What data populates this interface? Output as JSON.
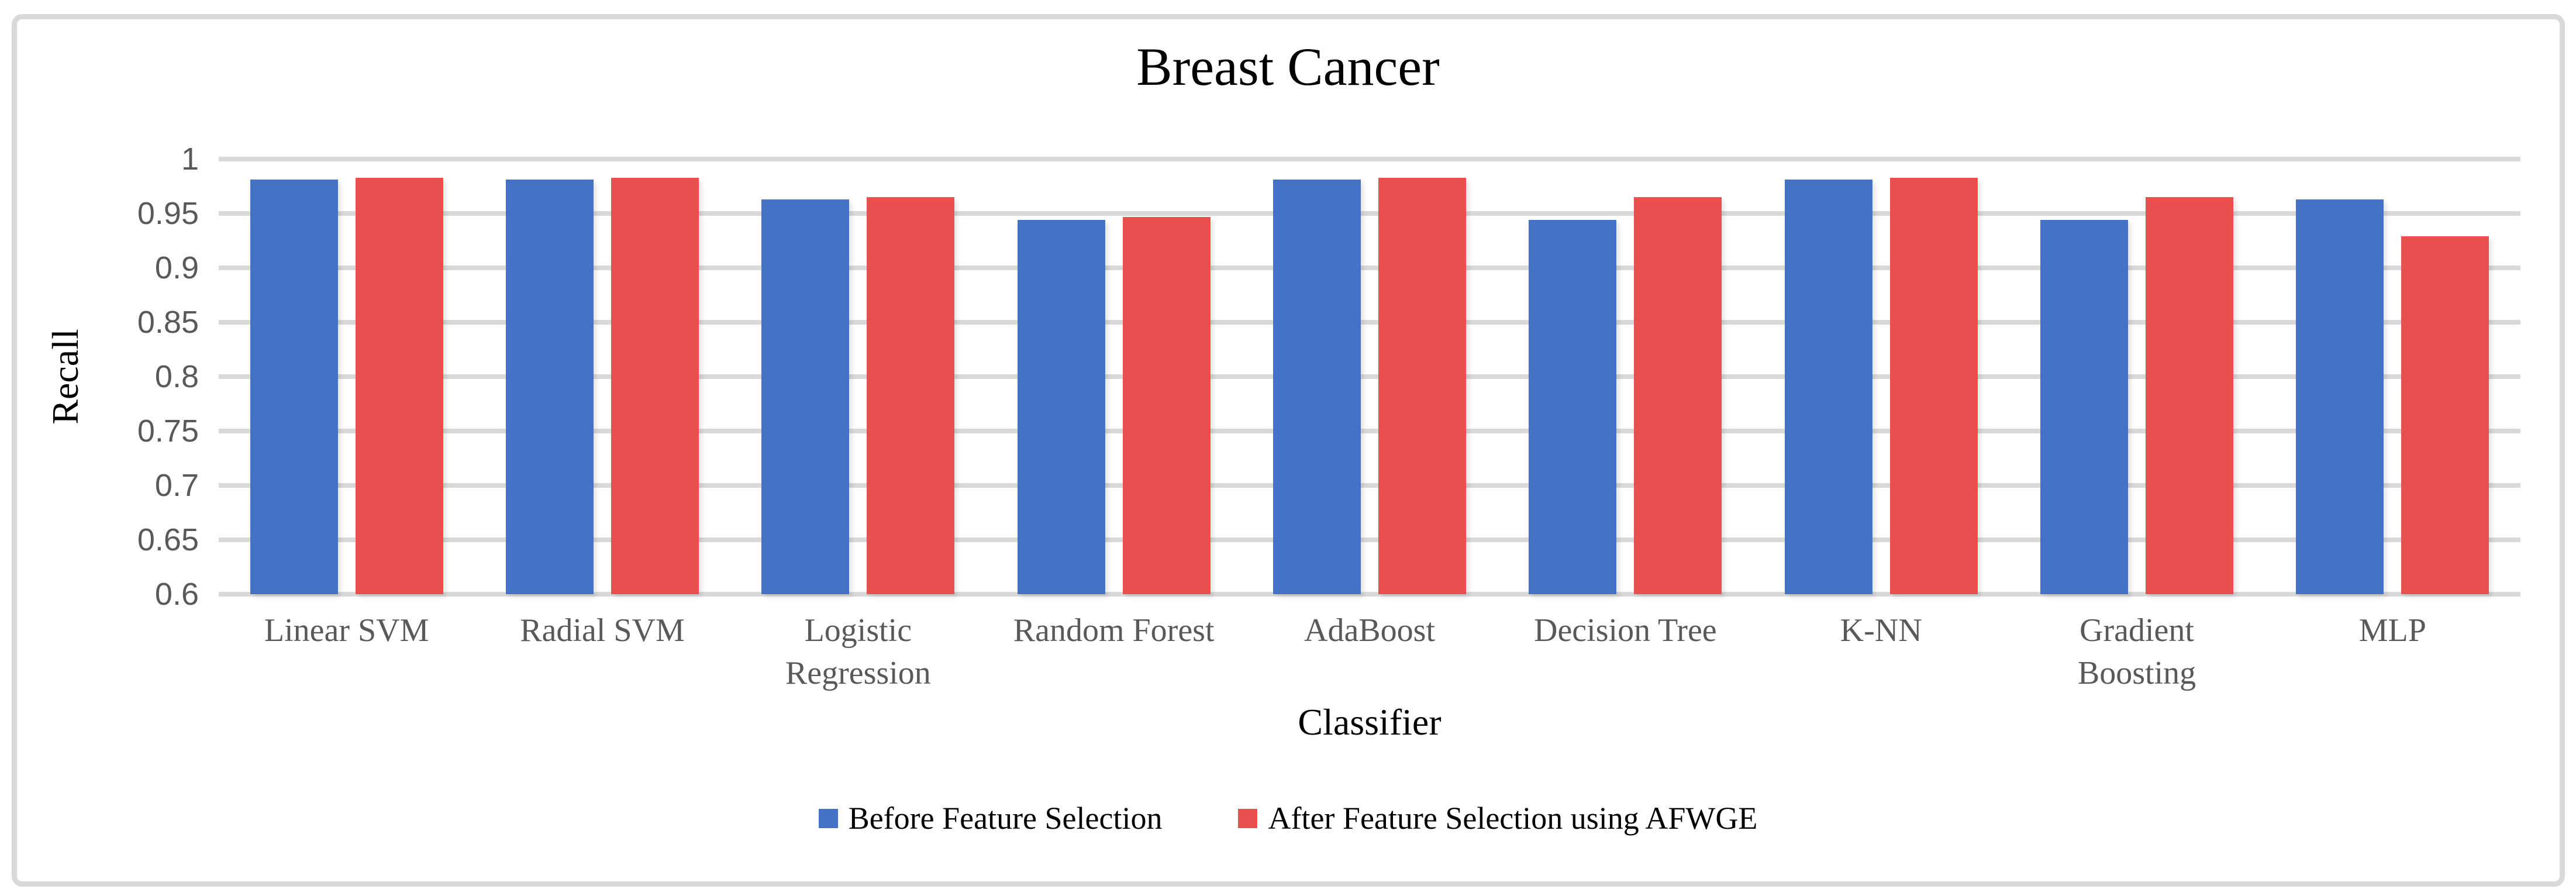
{
  "figure": {
    "title": "Breast Cancer",
    "x_axis_title": "Classifier",
    "y_axis_title": "Recall"
  },
  "legend": [
    {
      "label": "Before Feature Selection",
      "color": "#4472C4"
    },
    {
      "label": "After Feature Selection using AFWGE",
      "color": "#E9504D"
    }
  ],
  "colors": {
    "series_before": "#4472C4",
    "series_after": "#E9504D",
    "gridline": "#D9D9D9",
    "figure_border": "#D9D9D9",
    "tick_label": "#595959",
    "category_label": "#595959",
    "title_text": "#000000"
  },
  "chart_data": {
    "type": "bar",
    "title": "Breast Cancer",
    "xlabel": "Classifier",
    "ylabel": "Recall",
    "categories": [
      "Linear SVM",
      "Radial SVM",
      "Logistic Regression",
      "Random Forest",
      "AdaBoost",
      "Decision Tree",
      "K-NN",
      "Gradient Boosting",
      "MLP"
    ],
    "series": [
      {
        "name": "Before Feature Selection",
        "color": "#4472C4",
        "values": [
          0.981,
          0.981,
          0.963,
          0.944,
          0.981,
          0.944,
          0.981,
          0.944,
          0.963
        ]
      },
      {
        "name": "After Feature Selection using AFWGE",
        "color": "#E9504D",
        "values": [
          0.983,
          0.983,
          0.965,
          0.947,
          0.983,
          0.965,
          0.983,
          0.965,
          0.929
        ]
      }
    ],
    "ylim": [
      0.6,
      1.0
    ],
    "ytick_step": 0.05,
    "ytick_labels": [
      "1",
      "0.95",
      "0.9",
      "0.85",
      "0.8",
      "0.75",
      "0.7",
      "0.65",
      "0.6"
    ],
    "grid": true,
    "legend_position": "bottom"
  }
}
